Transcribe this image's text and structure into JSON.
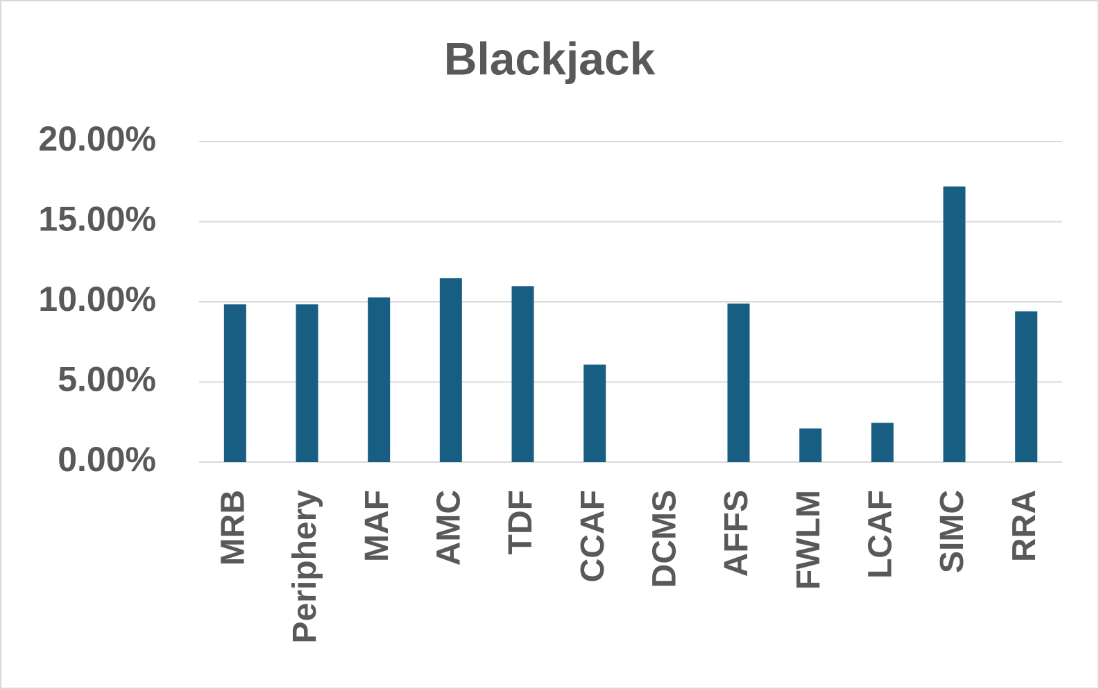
{
  "chart_data": {
    "type": "bar",
    "title": "Blackjack",
    "categories": [
      "MRB",
      "Periphery",
      "MAF",
      "AMC",
      "TDF",
      "CCAF",
      "DCMS",
      "AFFS",
      "FWLM",
      "LCAF",
      "SIMC",
      "RRA"
    ],
    "values": [
      9.85,
      9.85,
      10.28,
      11.47,
      10.98,
      6.08,
      0,
      9.89,
      2.1,
      2.45,
      17.2,
      9.41
    ],
    "color": "#175e82",
    "ylim": [
      0,
      20
    ],
    "yticks": [
      {
        "value": 0,
        "label": "0.00%"
      },
      {
        "value": 5,
        "label": "5.00%"
      },
      {
        "value": 10,
        "label": "10.00%"
      },
      {
        "value": 15,
        "label": "15.00%"
      },
      {
        "value": 20,
        "label": "20.00%"
      }
    ],
    "grid": true
  }
}
